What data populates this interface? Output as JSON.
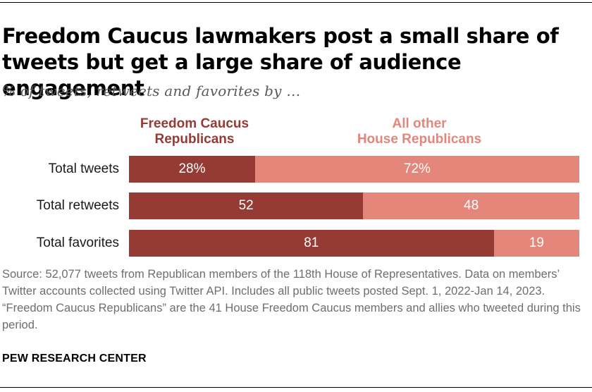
{
  "title": "Freedom Caucus lawmakers post a small share of tweets but get a large share of audience engagement",
  "subtitle": "% of tweets, retweets and favorites by …",
  "legend": {
    "fc": [
      "Freedom Caucus",
      "Republicans"
    ],
    "other": [
      "All other",
      "House Republicans"
    ]
  },
  "colors": {
    "fc": "#963a34",
    "other": "#e48679"
  },
  "chart_data": {
    "type": "bar",
    "orientation": "horizontal",
    "stacked": true,
    "categories": [
      "Total tweets",
      "Total retweets",
      "Total favorites"
    ],
    "series": [
      {
        "name": "Freedom Caucus Republicans",
        "values": [
          28,
          52,
          81
        ],
        "labels": [
          "28%",
          "52",
          "81"
        ]
      },
      {
        "name": "All other House Republicans",
        "values": [
          72,
          48,
          19
        ],
        "labels": [
          "72%",
          "48",
          "19"
        ]
      }
    ],
    "xlim": [
      0,
      100
    ],
    "grid": false
  },
  "source": "Source: 52,077 tweets from Republican members of the 118th House of Representatives. Data on members’ Twitter accounts collected using Twitter API. Includes all public tweets posted Sept. 1, 2022-Jan 14, 2023. “Freedom Caucus Republicans” are the 41 House Freedom Caucus members and allies who tweeted during this period.",
  "organization": "PEW RESEARCH CENTER"
}
